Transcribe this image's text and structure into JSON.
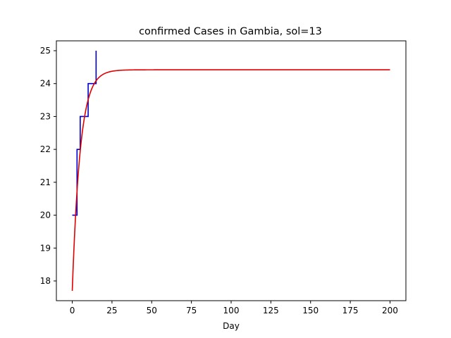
{
  "chart_data": {
    "type": "line",
    "title": "confirmed Cases in Gambia, sol=13",
    "xlabel": "Day",
    "ylabel": "",
    "xlim": [
      -10,
      210
    ],
    "ylim": [
      17.4,
      25.3
    ],
    "xticks": [
      0,
      25,
      50,
      75,
      100,
      125,
      150,
      175,
      200
    ],
    "yticks": [
      18,
      19,
      20,
      21,
      22,
      23,
      24,
      25
    ],
    "grid": false,
    "series": [
      {
        "color": "#0000cc",
        "step": true,
        "x": [
          0,
          1,
          2,
          3,
          4,
          5,
          6,
          7,
          8,
          9,
          10,
          11,
          12,
          13,
          14,
          15
        ],
        "y": [
          20,
          20,
          20,
          22,
          22,
          23,
          23,
          23,
          23,
          23,
          24,
          24,
          24,
          24,
          24,
          25
        ]
      },
      {
        "color": "#e00000",
        "model": "logistic",
        "x_range": [
          0,
          200
        ],
        "y0": 17.7,
        "asymptote": 24.42,
        "rate": 0.2
      }
    ]
  }
}
